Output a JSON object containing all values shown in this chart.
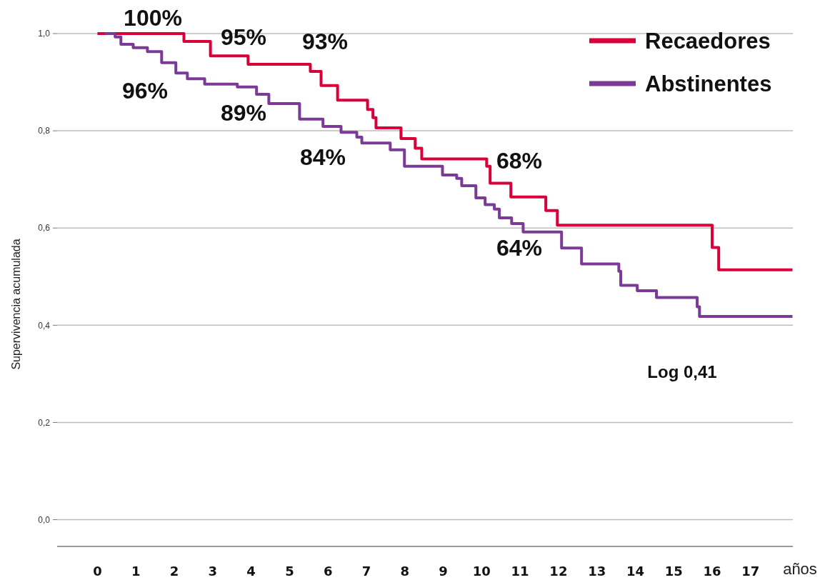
{
  "chart_data": {
    "type": "step",
    "ylabel": "Supervivencia acumulada",
    "xlabel": "años",
    "xlim": [
      -1.05,
      18.1
    ],
    "xticks": [
      0,
      1,
      2,
      3,
      4,
      5,
      6,
      7,
      8,
      9,
      10,
      11,
      12,
      13,
      14,
      15,
      16,
      17
    ],
    "ylim": [
      -0.055,
      1.0
    ],
    "yticks": [
      {
        "value": 0,
        "label": "0,0"
      },
      {
        "value": 0.2,
        "label": "0,2"
      },
      {
        "value": 0.4,
        "label": "0,4"
      },
      {
        "value": 0.6,
        "label": "0,6"
      },
      {
        "value": 0.8,
        "label": "0,8"
      },
      {
        "value": 1,
        "label": "1,0"
      }
    ],
    "grid": "y",
    "legend": "top right",
    "series": [
      {
        "name": "Recaedores",
        "color": "#d9003a",
        "x": [
          0,
          2.25,
          2.94,
          3.92,
          5.54,
          5.82,
          6.25,
          7.03,
          7.17,
          7.25,
          7.9,
          8.27,
          8.44,
          10.13,
          10.22,
          10.76,
          11.67,
          11.97,
          16.0,
          16.17,
          18.09
        ],
        "values": [
          1.0,
          0.984,
          0.954,
          0.937,
          0.922,
          0.893,
          0.863,
          0.844,
          0.827,
          0.806,
          0.784,
          0.764,
          0.742,
          0.727,
          0.692,
          0.664,
          0.636,
          0.606,
          0.56,
          0.514,
          0.514
        ]
      },
      {
        "name": "Abstinentes",
        "color": "#7b3a96",
        "x": [
          0.19,
          0.46,
          0.61,
          0.93,
          1.3,
          1.67,
          2.04,
          2.34,
          2.79,
          3.64,
          4.14,
          4.46,
          5.26,
          5.87,
          6.34,
          6.75,
          6.88,
          7.62,
          7.99,
          8.98,
          9.35,
          9.48,
          9.85,
          10.09,
          10.33,
          10.46,
          10.78,
          11.08,
          12.08,
          12.6,
          13.57,
          13.62,
          14.05,
          14.55,
          15.61,
          15.67,
          18.09
        ],
        "values": [
          1.0,
          0.993,
          0.978,
          0.971,
          0.963,
          0.94,
          0.919,
          0.907,
          0.896,
          0.89,
          0.875,
          0.856,
          0.824,
          0.809,
          0.797,
          0.787,
          0.775,
          0.761,
          0.727,
          0.709,
          0.702,
          0.687,
          0.662,
          0.648,
          0.639,
          0.621,
          0.609,
          0.592,
          0.559,
          0.526,
          0.511,
          0.482,
          0.471,
          0.457,
          0.438,
          0.418,
          0.418
        ]
      }
    ],
    "annotations": [
      "100%",
      "96%",
      "95%",
      "93%",
      "89%",
      "84%",
      "68%",
      "64%",
      "Log 0,41"
    ]
  }
}
